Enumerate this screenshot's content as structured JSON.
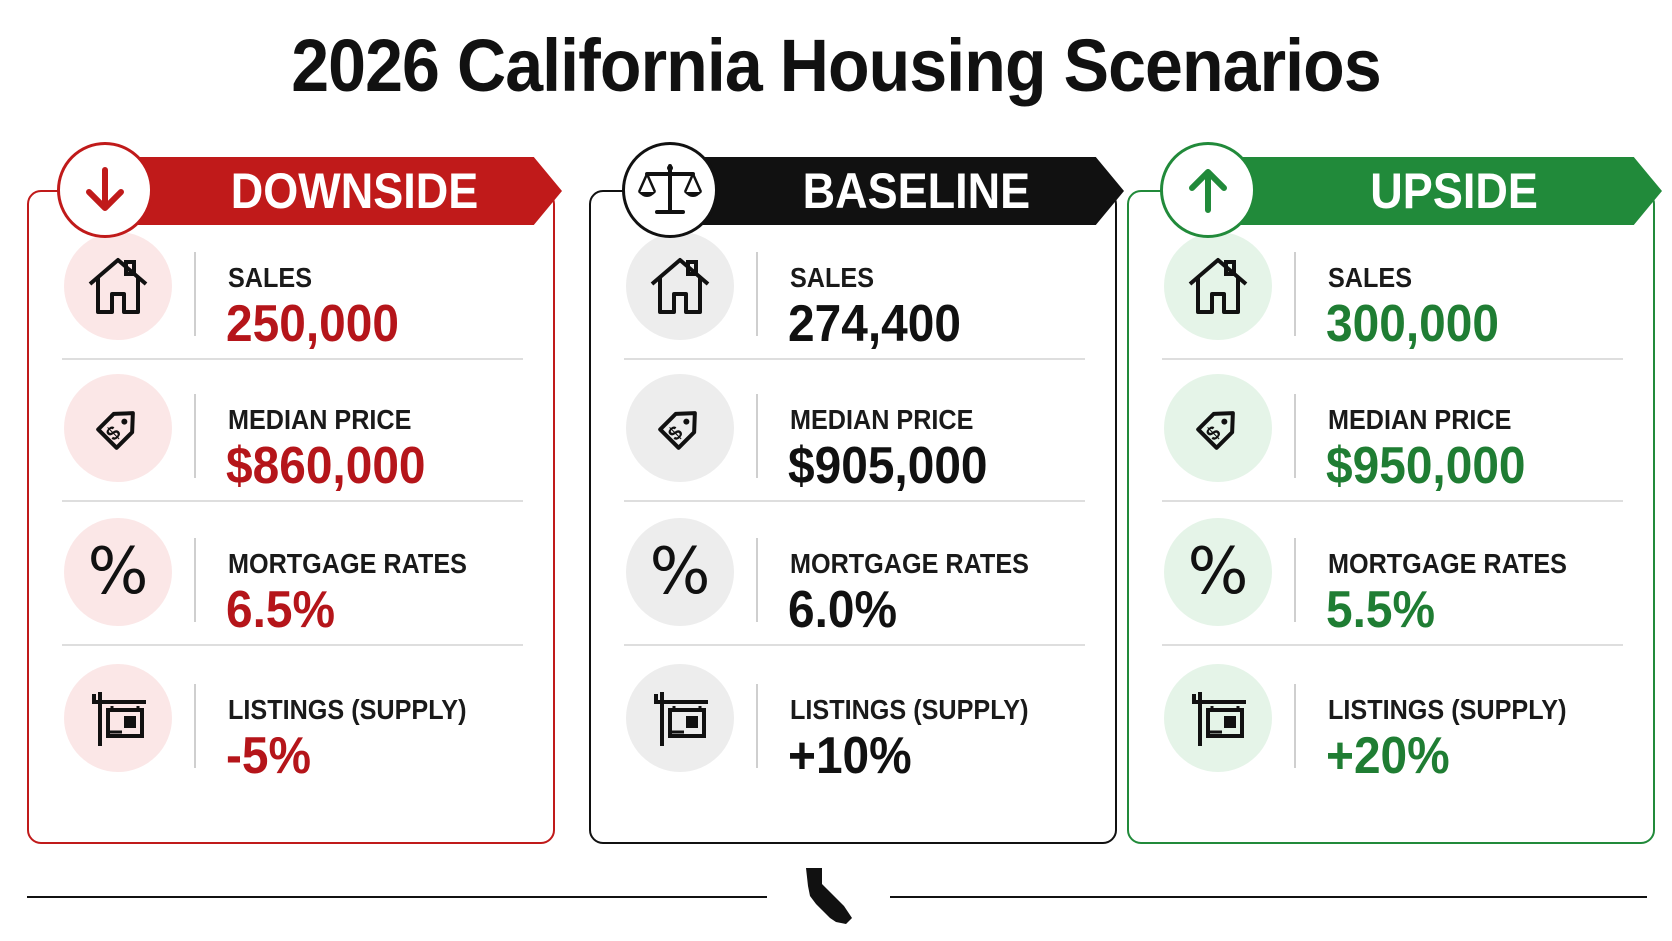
{
  "title": "2026 California Housing Scenarios",
  "colors": {
    "downside": "#c01a1a",
    "baseline": "#111111",
    "upside": "#218a3a"
  },
  "scenarios": [
    {
      "name": "DOWNSIDE",
      "badge_icon": "arrow-down-icon",
      "metrics": [
        {
          "label": "SALES",
          "value": "250,000",
          "icon": "house-icon"
        },
        {
          "label": "MEDIAN PRICE",
          "value": "$860,000",
          "icon": "price-tag-icon"
        },
        {
          "label": "MORTGAGE RATES",
          "value": "6.5%",
          "icon": "percent-icon"
        },
        {
          "label": "LISTINGS (SUPPLY)",
          "value": "-5%",
          "icon": "for-sale-sign-icon"
        }
      ]
    },
    {
      "name": "BASELINE",
      "badge_icon": "balance-scale-icon",
      "metrics": [
        {
          "label": "SALES",
          "value": "274,400",
          "icon": "house-icon"
        },
        {
          "label": "MEDIAN PRICE",
          "value": "$905,000",
          "icon": "price-tag-icon"
        },
        {
          "label": "MORTGAGE RATES",
          "value": "6.0%",
          "icon": "percent-icon"
        },
        {
          "label": "LISTINGS (SUPPLY)",
          "value": "+10%",
          "icon": "for-sale-sign-icon"
        }
      ]
    },
    {
      "name": "UPSIDE",
      "badge_icon": "arrow-up-icon",
      "metrics": [
        {
          "label": "SALES",
          "value": "300,000",
          "icon": "house-icon"
        },
        {
          "label": "MEDIAN PRICE",
          "value": "$950,000",
          "icon": "price-tag-icon"
        },
        {
          "label": "MORTGAGE RATES",
          "value": "5.5%",
          "icon": "percent-icon"
        },
        {
          "label": "LISTINGS (SUPPLY)",
          "value": "+20%",
          "icon": "for-sale-sign-icon"
        }
      ]
    }
  ],
  "pct_glyph": "%",
  "footer_icon": "california-state-icon"
}
